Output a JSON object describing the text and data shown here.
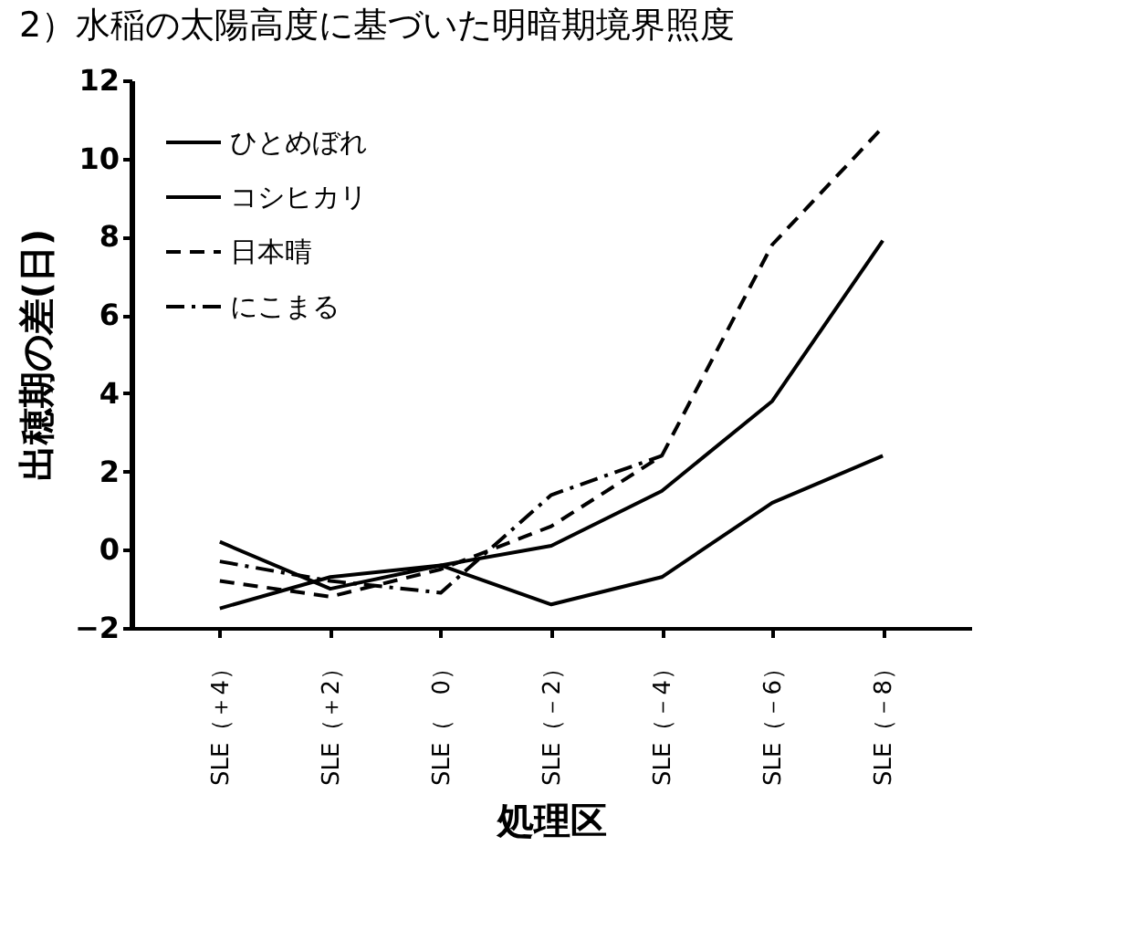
{
  "chart_data": {
    "type": "line",
    "title": "2）水稲の太陽高度に基づいた明暗期境界照度",
    "xlabel": "処理区",
    "ylabel": "出穂期の差(日)",
    "categories": [
      "SLE（＋4）",
      "SLE（＋2）",
      "SLE（　0）",
      "SLE（－2）",
      "SLE（－4）",
      "SLE（－6）",
      "SLE（－8）"
    ],
    "series": [
      {
        "name": "ひとめぼれ",
        "color": "#000000",
        "line_style": "solid",
        "values": [
          0.2,
          -1.0,
          -0.4,
          -1.4,
          -0.7,
          1.2,
          2.4
        ]
      },
      {
        "name": "コシヒカリ",
        "color": "#000000",
        "line_style": "solid",
        "values": [
          -1.5,
          -0.7,
          -0.4,
          0.1,
          1.5,
          3.8,
          7.9
        ]
      },
      {
        "name": "日本晴",
        "color": "#000000",
        "line_style": "dashed",
        "values": [
          -0.8,
          -1.2,
          -0.5,
          0.6,
          2.4,
          7.8,
          10.8
        ]
      },
      {
        "name": "にこまる",
        "color": "#000000",
        "line_style": "dashdot",
        "values": [
          -0.3,
          -0.8,
          -1.1,
          1.4,
          2.4,
          null,
          null
        ]
      }
    ],
    "ylim": [
      -2,
      12
    ],
    "yticks": [
      -2,
      0,
      2,
      4,
      6,
      8,
      10,
      12
    ],
    "grid": false,
    "legend": "top left",
    "marker": "none"
  }
}
